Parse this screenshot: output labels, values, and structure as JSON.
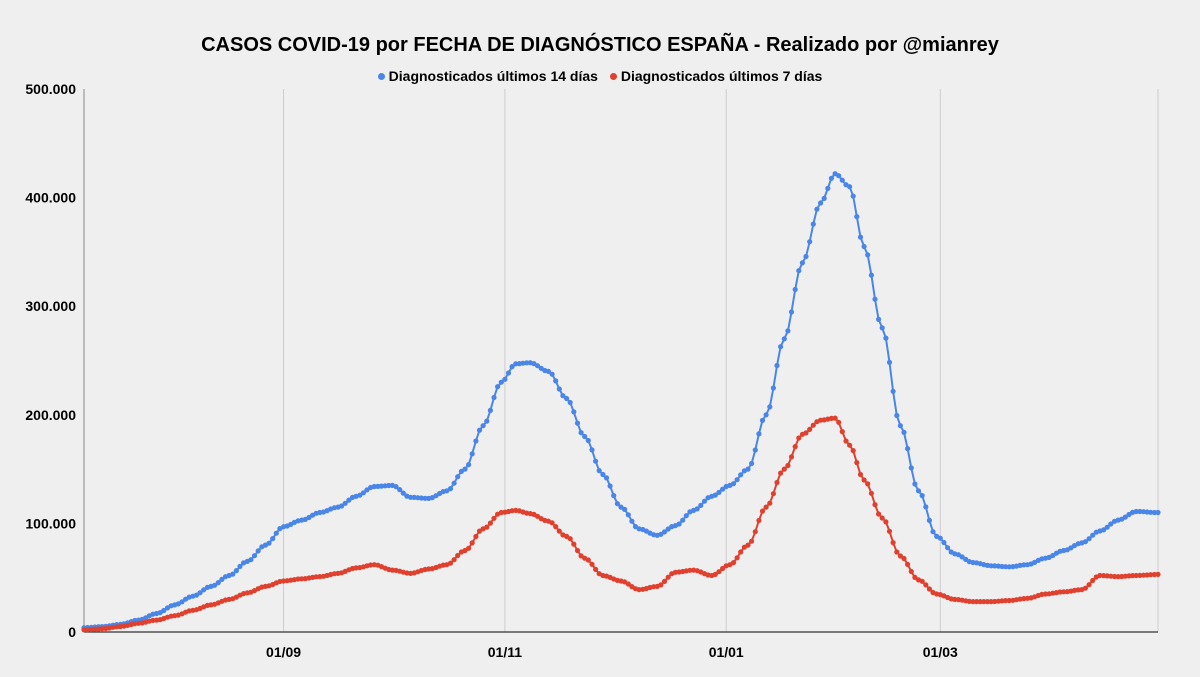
{
  "chart_data": {
    "type": "line",
    "title": "CASOS COVID-19 por FECHA DE DIAGNÓSTICO ESPAÑA - Realizado por @mianrey",
    "xlabel": "",
    "ylabel": "",
    "ylim": [
      0,
      500000
    ],
    "yticks": [
      0,
      100000,
      200000,
      300000,
      400000,
      500000
    ],
    "ytick_labels": [
      "0",
      "100.000",
      "200.000",
      "300.000",
      "400.000",
      "500.000"
    ],
    "x_range": [
      "2020-07-08",
      "2021-04-30"
    ],
    "xticks": [
      "2020-09-01",
      "2020-11-01",
      "2021-01-01",
      "2021-03-01"
    ],
    "xtick_labels": [
      "01/09",
      "01/11",
      "01/01",
      "01/03"
    ],
    "grid": {
      "vertical": true,
      "horizontal": false
    },
    "legend_position": "top-center",
    "series": [
      {
        "name": "Diagnosticados últimos 14 días",
        "color": "#4a86e8",
        "points": [
          [
            "2020-07-08",
            4000
          ],
          [
            "2020-07-13",
            5000
          ],
          [
            "2020-07-18",
            7000
          ],
          [
            "2020-07-23",
            11000
          ],
          [
            "2020-07-28",
            17000
          ],
          [
            "2020-08-02",
            25000
          ],
          [
            "2020-08-07",
            33000
          ],
          [
            "2020-08-12",
            42000
          ],
          [
            "2020-08-17",
            52000
          ],
          [
            "2020-08-22",
            65000
          ],
          [
            "2020-08-27",
            80000
          ],
          [
            "2020-09-01",
            97000
          ],
          [
            "2020-09-06",
            103000
          ],
          [
            "2020-09-11",
            110000
          ],
          [
            "2020-09-16",
            115000
          ],
          [
            "2020-09-21",
            125000
          ],
          [
            "2020-09-26",
            134000
          ],
          [
            "2020-10-01",
            135000
          ],
          [
            "2020-10-06",
            124000
          ],
          [
            "2020-10-11",
            123000
          ],
          [
            "2020-10-16",
            130000
          ],
          [
            "2020-10-21",
            150000
          ],
          [
            "2020-10-26",
            190000
          ],
          [
            "2020-10-31",
            230000
          ],
          [
            "2020-11-04",
            247000
          ],
          [
            "2020-11-08",
            248000
          ],
          [
            "2020-11-13",
            240000
          ],
          [
            "2020-11-18",
            215000
          ],
          [
            "2020-11-23",
            180000
          ],
          [
            "2020-11-28",
            145000
          ],
          [
            "2020-12-03",
            115000
          ],
          [
            "2020-12-08",
            95000
          ],
          [
            "2020-12-13",
            89000
          ],
          [
            "2020-12-18",
            98000
          ],
          [
            "2020-12-23",
            112000
          ],
          [
            "2020-12-28",
            125000
          ],
          [
            "2021-01-02",
            135000
          ],
          [
            "2021-01-07",
            150000
          ],
          [
            "2021-01-12",
            200000
          ],
          [
            "2021-01-17",
            270000
          ],
          [
            "2021-01-22",
            340000
          ],
          [
            "2021-01-27",
            395000
          ],
          [
            "2021-01-31",
            422000
          ],
          [
            "2021-02-04",
            410000
          ],
          [
            "2021-02-08",
            355000
          ],
          [
            "2021-02-13",
            280000
          ],
          [
            "2021-02-18",
            190000
          ],
          [
            "2021-02-23",
            130000
          ],
          [
            "2021-02-28",
            88000
          ],
          [
            "2021-03-05",
            72000
          ],
          [
            "2021-03-10",
            64000
          ],
          [
            "2021-03-15",
            61000
          ],
          [
            "2021-03-20",
            60000
          ],
          [
            "2021-03-25",
            62000
          ],
          [
            "2021-03-30",
            68000
          ],
          [
            "2021-04-04",
            75000
          ],
          [
            "2021-04-09",
            82000
          ],
          [
            "2021-04-14",
            93000
          ],
          [
            "2021-04-19",
            103000
          ],
          [
            "2021-04-24",
            111000
          ],
          [
            "2021-04-30",
            110000
          ]
        ]
      },
      {
        "name": "Diagnosticados últimos 7 días",
        "color": "#e0412f",
        "points": [
          [
            "2020-07-08",
            2000
          ],
          [
            "2020-07-13",
            3000
          ],
          [
            "2020-07-18",
            5000
          ],
          [
            "2020-07-23",
            8000
          ],
          [
            "2020-07-28",
            11000
          ],
          [
            "2020-08-02",
            15000
          ],
          [
            "2020-08-07",
            20000
          ],
          [
            "2020-08-12",
            25000
          ],
          [
            "2020-08-17",
            30000
          ],
          [
            "2020-08-22",
            36000
          ],
          [
            "2020-08-27",
            42000
          ],
          [
            "2020-09-01",
            47000
          ],
          [
            "2020-09-06",
            49000
          ],
          [
            "2020-09-11",
            51000
          ],
          [
            "2020-09-16",
            54000
          ],
          [
            "2020-09-21",
            59000
          ],
          [
            "2020-09-26",
            62000
          ],
          [
            "2020-10-01",
            57000
          ],
          [
            "2020-10-06",
            54000
          ],
          [
            "2020-10-11",
            58000
          ],
          [
            "2020-10-16",
            62000
          ],
          [
            "2020-10-21",
            75000
          ],
          [
            "2020-10-26",
            95000
          ],
          [
            "2020-10-31",
            110000
          ],
          [
            "2020-11-04",
            112000
          ],
          [
            "2020-11-08",
            109000
          ],
          [
            "2020-11-13",
            102000
          ],
          [
            "2020-11-18",
            88000
          ],
          [
            "2020-11-23",
            68000
          ],
          [
            "2020-11-28",
            52000
          ],
          [
            "2020-12-03",
            47000
          ],
          [
            "2020-12-08",
            39000
          ],
          [
            "2020-12-13",
            42000
          ],
          [
            "2020-12-18",
            55000
          ],
          [
            "2020-12-23",
            57000
          ],
          [
            "2020-12-28",
            52000
          ],
          [
            "2021-01-02",
            62000
          ],
          [
            "2021-01-07",
            80000
          ],
          [
            "2021-01-12",
            115000
          ],
          [
            "2021-01-17",
            150000
          ],
          [
            "2021-01-22",
            182000
          ],
          [
            "2021-01-27",
            195000
          ],
          [
            "2021-01-31",
            197000
          ],
          [
            "2021-02-04",
            172000
          ],
          [
            "2021-02-08",
            140000
          ],
          [
            "2021-02-13",
            105000
          ],
          [
            "2021-02-18",
            70000
          ],
          [
            "2021-02-23",
            48000
          ],
          [
            "2021-02-28",
            35000
          ],
          [
            "2021-03-05",
            30000
          ],
          [
            "2021-03-10",
            28000
          ],
          [
            "2021-03-15",
            28000
          ],
          [
            "2021-03-20",
            29000
          ],
          [
            "2021-03-25",
            31000
          ],
          [
            "2021-03-30",
            35000
          ],
          [
            "2021-04-04",
            37000
          ],
          [
            "2021-04-09",
            39000
          ],
          [
            "2021-04-14",
            52000
          ],
          [
            "2021-04-19",
            51000
          ],
          [
            "2021-04-24",
            52000
          ],
          [
            "2021-04-30",
            53000
          ]
        ]
      }
    ]
  }
}
